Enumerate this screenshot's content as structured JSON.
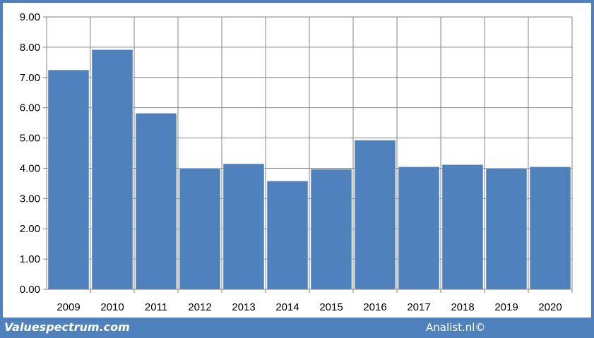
{
  "chart_data": {
    "type": "bar",
    "categories": [
      "2009",
      "2010",
      "2011",
      "2012",
      "2013",
      "2014",
      "2015",
      "2016",
      "2017",
      "2018",
      "2019",
      "2020"
    ],
    "values": [
      7.25,
      7.92,
      5.82,
      4.0,
      4.15,
      3.58,
      3.97,
      4.93,
      4.05,
      4.12,
      4.0,
      4.05
    ],
    "y_ticks": [
      "0.00",
      "1.00",
      "2.00",
      "3.00",
      "4.00",
      "5.00",
      "6.00",
      "7.00",
      "8.00",
      "9.00"
    ],
    "ylim": [
      0,
      9
    ],
    "grid": true,
    "bar_color": "#4f81bd"
  },
  "footer": {
    "left": "Valuespectrum.com",
    "right": "Analist.nl©"
  },
  "colors": {
    "frame": "#4f81bd",
    "grid": "#868686"
  }
}
